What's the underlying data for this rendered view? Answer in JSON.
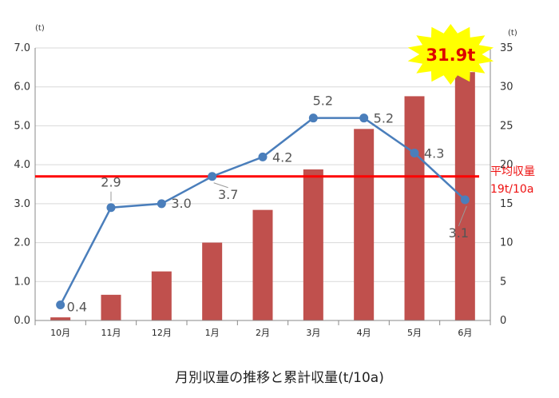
{
  "chart_data": {
    "type": "bar+line",
    "title": "月別収量の推移と累計収量(t/10a)",
    "categories": [
      "10月",
      "11月",
      "12月",
      "1月",
      "2月",
      "3月",
      "4月",
      "5月",
      "6月"
    ],
    "left_axis": {
      "unit": "(t)",
      "ylim": [
        0,
        7
      ],
      "ticks": [
        "0.0",
        "1.0",
        "2.0",
        "3.0",
        "4.0",
        "5.0",
        "6.0",
        "7.0"
      ]
    },
    "right_axis": {
      "unit": "(t)",
      "ylim": [
        0,
        35
      ],
      "ticks": [
        "0",
        "5",
        "10",
        "15",
        "20",
        "25",
        "30",
        "35"
      ]
    },
    "monthly_line": {
      "axis": "left",
      "values": [
        0.4,
        2.9,
        3.0,
        3.7,
        4.2,
        5.2,
        5.2,
        4.3,
        3.1
      ],
      "labels": [
        "0.4",
        "2.9",
        "3.0",
        "3.7",
        "4.2",
        "5.2",
        "5.2",
        "4.3",
        "3.1"
      ],
      "color": "#4a7ebb"
    },
    "cumulative_bars": {
      "axis": "right",
      "values": [
        0.4,
        3.3,
        6.3,
        10.0,
        14.2,
        19.4,
        24.6,
        28.8,
        31.9
      ],
      "color": "#c0504d"
    },
    "average_line": {
      "axis": "left",
      "value": 3.7,
      "label_line1": "平均収量",
      "label_line2": "19t/10a",
      "color": "#ff0000"
    },
    "callout": {
      "text": "31.9t",
      "color": "#ffff00"
    },
    "grid": true
  }
}
